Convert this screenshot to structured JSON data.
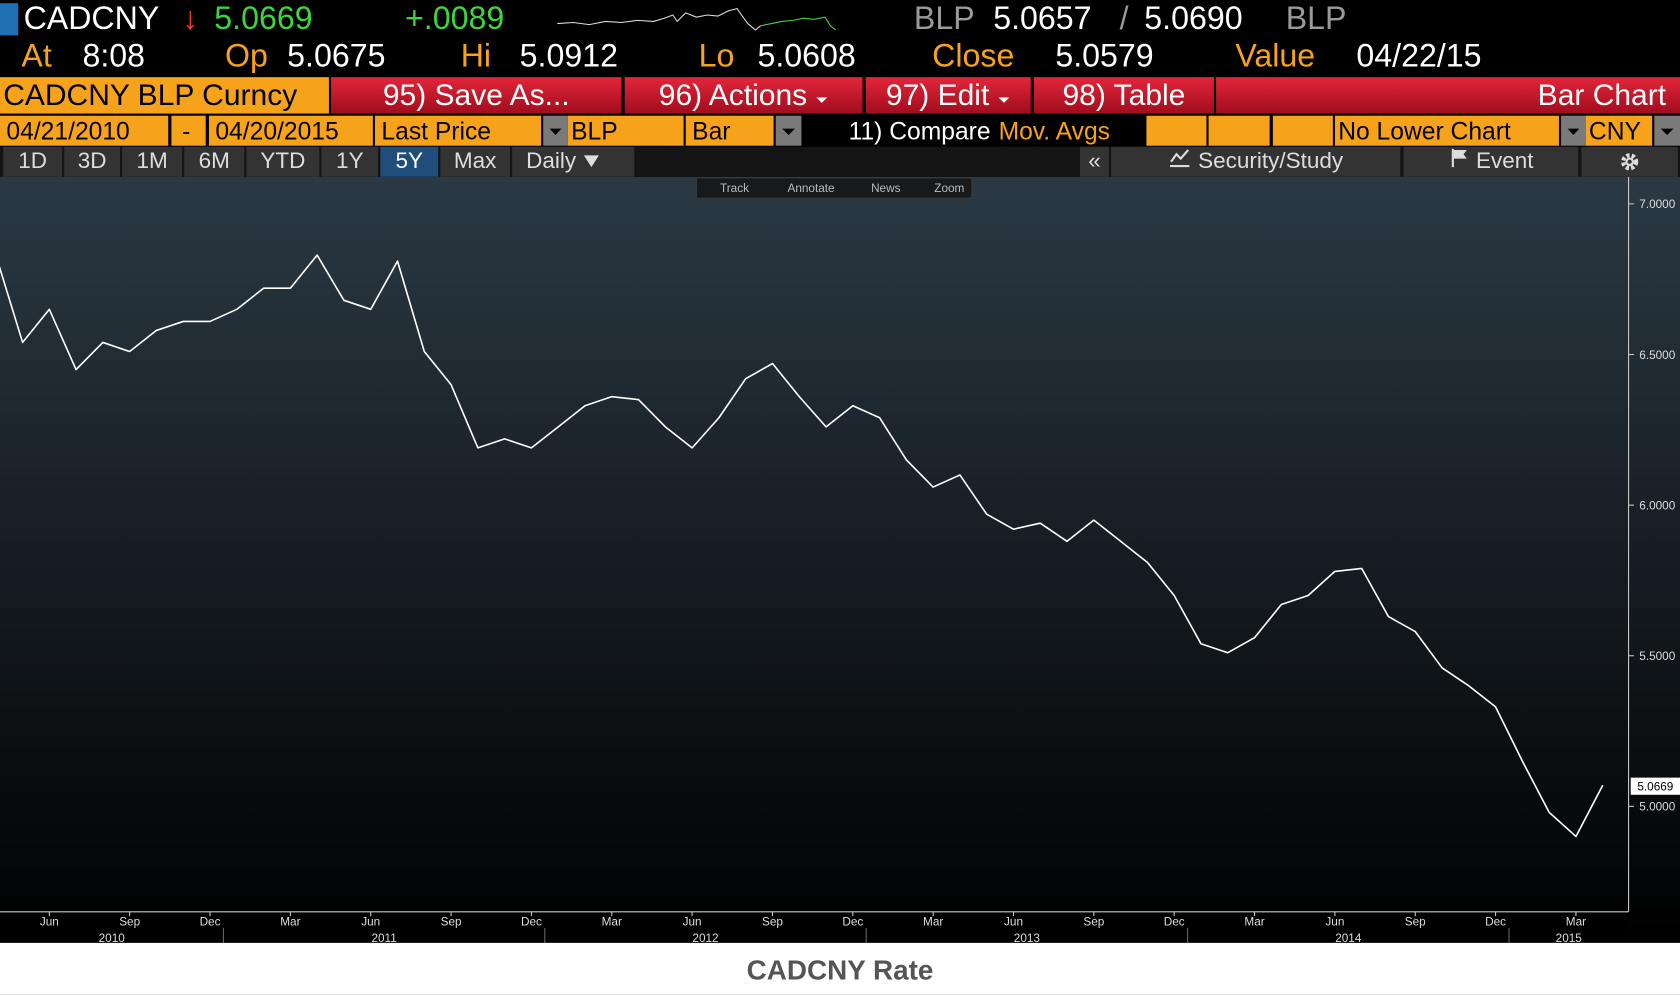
{
  "header": {
    "ticker": "CADCNY",
    "direction": "↓",
    "last": "5.0669",
    "change": "+.0089",
    "bid_source": "BLP",
    "bid": "5.0657",
    "bid_ask_separator": "/",
    "ask": "5.0690",
    "ask_source": "BLP"
  },
  "stats": [
    {
      "label": "At",
      "value": "8:08"
    },
    {
      "label": "Op",
      "value": "5.0675"
    },
    {
      "label": "Hi",
      "value": "5.0912"
    },
    {
      "label": "Lo",
      "value": "5.0608"
    },
    {
      "label": "Close",
      "value": "5.0579"
    },
    {
      "label": "Value",
      "value": "04/22/15"
    }
  ],
  "toolbar": {
    "security": "CADCNY BLP Curncy",
    "buttons": [
      "95) Save As...",
      "96) Actions",
      "97) Edit",
      "98) Table"
    ],
    "chart_type": "Bar Chart"
  },
  "settings": {
    "start": "04/21/2010",
    "separator": "-",
    "end": "04/20/2015",
    "field": "Last Price",
    "source": "BLP",
    "style": "Bar",
    "compare": "11) Compare",
    "overlay": "Mov. Avgs",
    "lower_chart": "No Lower Chart",
    "currency": "CNY"
  },
  "periods": [
    "1D",
    "3D",
    "1M",
    "6M",
    "YTD",
    "1Y",
    "5Y",
    "Max",
    "Daily"
  ],
  "right_menu": {
    "collapse": "«",
    "study": "Security/Study",
    "event": "Event"
  },
  "chart_tools": [
    "Track",
    "Annotate",
    "News",
    "Zoom"
  ],
  "chart_data": {
    "type": "line",
    "title": "CADCNY Rate",
    "color": "#ffffff",
    "x": [
      "2010-04",
      "2010-05",
      "2010-06",
      "2010-07",
      "2010-08",
      "2010-09",
      "2010-10",
      "2010-11",
      "2010-12",
      "2011-01",
      "2011-02",
      "2011-03",
      "2011-04",
      "2011-05",
      "2011-06",
      "2011-07",
      "2011-08",
      "2011-09",
      "2011-10",
      "2011-11",
      "2011-12",
      "2012-01",
      "2012-02",
      "2012-03",
      "2012-04",
      "2012-05",
      "2012-06",
      "2012-07",
      "2012-08",
      "2012-09",
      "2012-10",
      "2012-11",
      "2012-12",
      "2013-01",
      "2013-02",
      "2013-03",
      "2013-04",
      "2013-05",
      "2013-06",
      "2013-07",
      "2013-08",
      "2013-09",
      "2013-10",
      "2013-11",
      "2013-12",
      "2014-01",
      "2014-02",
      "2014-03",
      "2014-04",
      "2014-05",
      "2014-06",
      "2014-07",
      "2014-08",
      "2014-09",
      "2014-10",
      "2014-11",
      "2014-12",
      "2015-01",
      "2015-02",
      "2015-03",
      "2015-04"
    ],
    "values": [
      6.83,
      6.54,
      6.65,
      6.45,
      6.54,
      6.51,
      6.58,
      6.61,
      6.61,
      6.65,
      6.72,
      6.72,
      6.83,
      6.68,
      6.65,
      6.81,
      6.51,
      6.4,
      6.19,
      6.22,
      6.19,
      6.26,
      6.33,
      6.36,
      6.35,
      6.26,
      6.19,
      6.29,
      6.42,
      6.47,
      6.36,
      6.26,
      6.33,
      6.29,
      6.15,
      6.06,
      6.1,
      5.97,
      5.92,
      5.94,
      5.88,
      5.95,
      5.88,
      5.81,
      5.7,
      5.54,
      5.51,
      5.56,
      5.67,
      5.7,
      5.78,
      5.79,
      5.63,
      5.58,
      5.46,
      5.4,
      5.33,
      5.15,
      4.98,
      4.9,
      5.07
    ],
    "xlim": [
      "2010-04-21",
      "2015-04-20"
    ],
    "xticks": [
      {
        "value": "2010-06",
        "label": "Jun"
      },
      {
        "value": "2010-09",
        "label": "Sep"
      },
      {
        "value": "2010-12",
        "label": "Dec"
      },
      {
        "value": "2011-03",
        "label": "Mar"
      },
      {
        "value": "2011-06",
        "label": "Jun"
      },
      {
        "value": "2011-09",
        "label": "Sep"
      },
      {
        "value": "2011-12",
        "label": "Dec"
      },
      {
        "value": "2012-03",
        "label": "Mar"
      },
      {
        "value": "2012-06",
        "label": "Jun"
      },
      {
        "value": "2012-09",
        "label": "Sep"
      },
      {
        "value": "2012-12",
        "label": "Dec"
      },
      {
        "value": "2013-03",
        "label": "Mar"
      },
      {
        "value": "2013-06",
        "label": "Jun"
      },
      {
        "value": "2013-09",
        "label": "Sep"
      },
      {
        "value": "2013-12",
        "label": "Dec"
      },
      {
        "value": "2014-03",
        "label": "Mar"
      },
      {
        "value": "2014-06",
        "label": "Jun"
      },
      {
        "value": "2014-09",
        "label": "Sep"
      },
      {
        "value": "2014-12",
        "label": "Dec"
      },
      {
        "value": "2015-03",
        "label": "Mar"
      }
    ],
    "years": [
      2010,
      2011,
      2012,
      2013,
      2014,
      2015
    ],
    "ylim": [
      4.65,
      7.09
    ],
    "yticks": [
      {
        "value": 5,
        "label": "5.0000"
      },
      {
        "value": 5.5,
        "label": "5.5000"
      },
      {
        "value": 6,
        "label": "6.0000"
      },
      {
        "value": 6.5,
        "label": "6.5000"
      },
      {
        "value": 7,
        "label": "7.0000"
      }
    ],
    "last_value": 5.0669
  }
}
